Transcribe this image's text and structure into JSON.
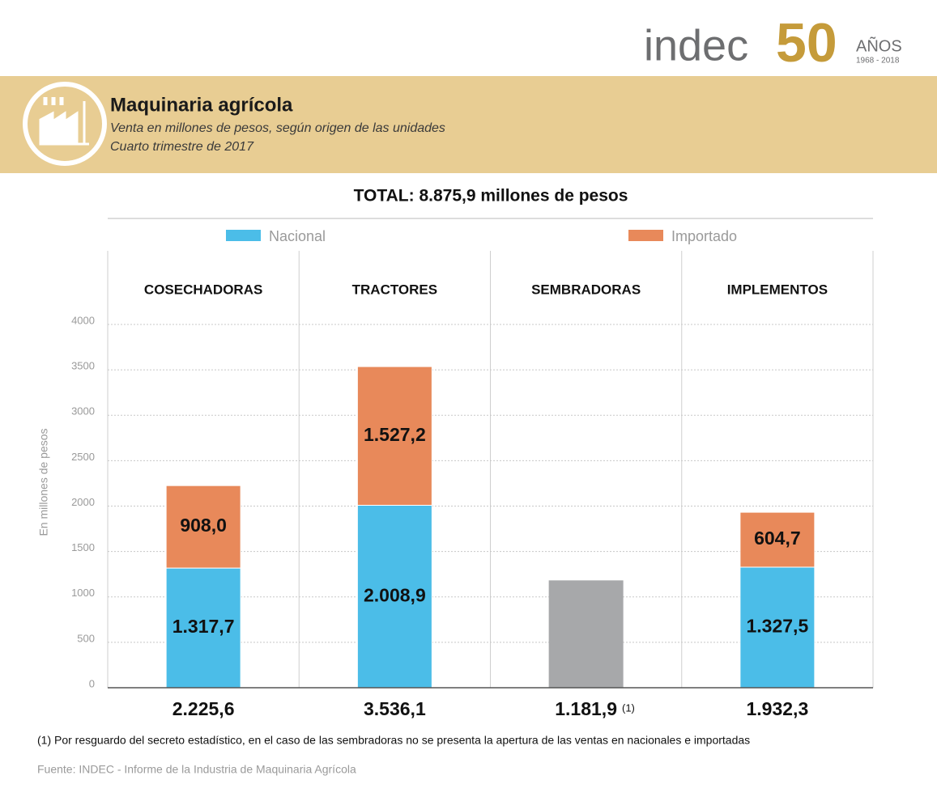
{
  "logo": {
    "brand": "indec",
    "anniversary": "50",
    "years_word": "AÑOS",
    "years_range": "1968 - 2018"
  },
  "chart_data": {
    "type": "stacked-bar",
    "title": "Maquinaria agrícola",
    "subtitle": [
      "Venta en millones de pesos, según origen de las unidades",
      "Cuarto trimestre de 2017"
    ],
    "total_title": "TOTAL: 8.875,9 millones de pesos",
    "y_label": "En millones de pesos",
    "categories": [
      "COSECHADORAS",
      "TRACTORES",
      "SEMBRADORAS",
      "IMPLEMENTOS"
    ],
    "series": [
      {
        "name": "Nacional",
        "color": "#4bbde8",
        "values": [
          1317.7,
          2008.9,
          null,
          1327.5
        ],
        "value_labels": [
          "1.317,7",
          "2.008,9",
          null,
          "1.327,5"
        ]
      },
      {
        "name": "Importado",
        "color": "#e8895a",
        "values": [
          908.0,
          1527.2,
          null,
          604.7
        ],
        "value_labels": [
          "908,0",
          "1.527,2",
          null,
          "604,7"
        ]
      }
    ],
    "totals": {
      "values": [
        2225.6,
        3536.1,
        1181.9,
        1932.3
      ],
      "value_labels": [
        "2.225,6",
        "3.536,1",
        "1.181,9",
        "1.932,3"
      ],
      "notes": [
        null,
        null,
        "(1)",
        null
      ],
      "unsplit_color": "#a7a8aa"
    },
    "ylim": [
      0,
      4000
    ],
    "yticks": [
      0,
      500,
      1000,
      1500,
      2000,
      2500,
      3000,
      3500,
      4000
    ],
    "grid": true,
    "footnote": "(1) Por resguardo del secreto estadístico, en el caso de las sembradoras no se presenta la apertura de las ventas en nacionales e importadas",
    "source": "Fuente: INDEC - Informe de la Industria de Maquinaria Agrícola"
  }
}
